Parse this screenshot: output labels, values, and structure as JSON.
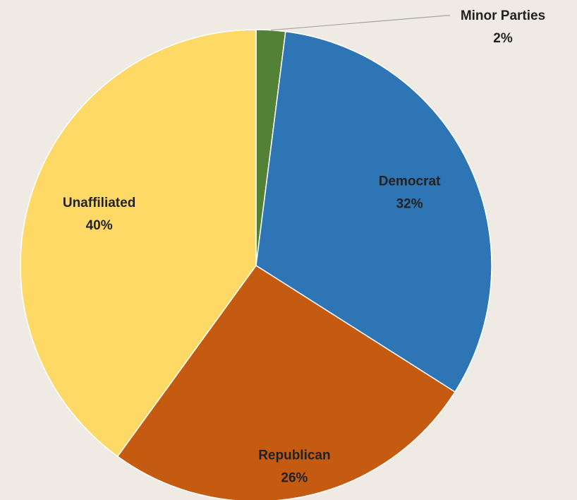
{
  "chart_data": {
    "type": "pie",
    "title": "",
    "slices": [
      {
        "name": "Minor Parties",
        "value": 2,
        "label": "2%",
        "color": "#538135"
      },
      {
        "name": "Democrat",
        "value": 32,
        "label": "32%",
        "color": "#2e75b6"
      },
      {
        "name": "Republican",
        "value": 26,
        "label": "26%",
        "color": "#c55a11"
      },
      {
        "name": "Unaffiliated",
        "value": 40,
        "label": "40%",
        "color": "#ffd966"
      }
    ],
    "start_angle_deg": 0,
    "direction": "clockwise",
    "slice_border_color": "#ffffff",
    "leader_line_color": "#a5a5a5",
    "background_color": "#efebe4"
  }
}
